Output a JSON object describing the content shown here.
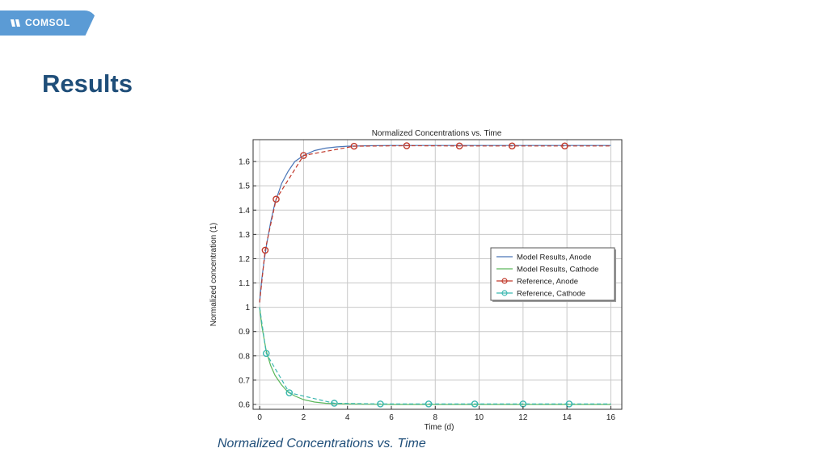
{
  "header": {
    "logo_text": "COMSOL",
    "logo_color": "#5b9bd5"
  },
  "page": {
    "title": "Results",
    "caption": "Normalized Concentrations vs. Time",
    "title_color": "#1f4e79"
  },
  "chart_data": {
    "type": "line",
    "title": "Normalized Concentrations vs. Time",
    "xlabel": "Time (d)",
    "ylabel": "Normalized concentration (1)",
    "xlim": [
      -0.3,
      16.5
    ],
    "ylim": [
      0.58,
      1.69
    ],
    "xticks": [
      0,
      2,
      4,
      6,
      8,
      10,
      12,
      14,
      16
    ],
    "yticks": [
      0.6,
      0.7,
      0.8,
      0.9,
      1,
      1.1,
      1.2,
      1.3,
      1.4,
      1.5,
      1.6
    ],
    "xtick_labels": [
      "0",
      "2",
      "4",
      "6",
      "8",
      "10",
      "12",
      "14",
      "16"
    ],
    "ytick_labels": [
      "0.6",
      "0.7",
      "0.8",
      "0.9",
      "1",
      "1.1",
      "1.2",
      "1.3",
      "1.4",
      "1.5",
      "1.6"
    ],
    "grid": true,
    "legend_position": "right",
    "series": [
      {
        "name": "Model Results, Anode",
        "style": "line",
        "color": "#4a76b8",
        "x": [
          0,
          0.1,
          0.2,
          0.3,
          0.5,
          0.7,
          1.0,
          1.3,
          1.6,
          2.0,
          2.5,
          3.0,
          3.5,
          4.0,
          5.0,
          6.0,
          8.0,
          10.0,
          12.0,
          14.0,
          16.0
        ],
        "y": [
          1.02,
          1.12,
          1.19,
          1.25,
          1.35,
          1.43,
          1.51,
          1.56,
          1.6,
          1.625,
          1.645,
          1.655,
          1.66,
          1.663,
          1.665,
          1.666,
          1.666,
          1.666,
          1.666,
          1.666,
          1.666
        ]
      },
      {
        "name": "Model Results, Cathode",
        "style": "line",
        "color": "#5cb85c",
        "x": [
          0,
          0.1,
          0.2,
          0.3,
          0.5,
          0.7,
          1.0,
          1.3,
          1.6,
          2.0,
          2.5,
          3.0,
          3.5,
          4.0,
          5.0,
          6.0,
          8.0,
          10.0,
          12.0,
          14.0,
          16.0
        ],
        "y": [
          1.0,
          0.92,
          0.87,
          0.82,
          0.76,
          0.72,
          0.68,
          0.65,
          0.635,
          0.62,
          0.61,
          0.605,
          0.603,
          0.602,
          0.601,
          0.6,
          0.6,
          0.6,
          0.6,
          0.6,
          0.6
        ]
      },
      {
        "name": "Reference, Anode",
        "style": "line-markers",
        "color": "#c0392b",
        "x": [
          0,
          0.25,
          0.75,
          2.0,
          4.3,
          6.7,
          9.1,
          11.5,
          13.9,
          16.0
        ],
        "y": [
          1.02,
          1.235,
          1.445,
          1.625,
          1.663,
          1.665,
          1.664,
          1.664,
          1.664,
          1.664
        ],
        "marker_x": [
          0.25,
          0.75,
          2.0,
          4.3,
          6.7,
          9.1,
          11.5,
          13.9
        ],
        "marker_y": [
          1.235,
          1.445,
          1.625,
          1.663,
          1.665,
          1.664,
          1.664,
          1.664
        ]
      },
      {
        "name": "Reference, Cathode",
        "style": "line-markers",
        "color": "#3bb7b0",
        "x": [
          0,
          0.3,
          1.35,
          3.4,
          5.5,
          7.7,
          9.8,
          12.0,
          14.1,
          16.0
        ],
        "y": [
          1.0,
          0.81,
          0.648,
          0.605,
          0.602,
          0.602,
          0.602,
          0.602,
          0.602,
          0.602
        ],
        "marker_x": [
          0.3,
          1.35,
          3.4,
          5.5,
          7.7,
          9.8,
          12.0,
          14.1
        ],
        "marker_y": [
          0.81,
          0.648,
          0.605,
          0.602,
          0.602,
          0.602,
          0.602,
          0.602
        ]
      }
    ]
  }
}
